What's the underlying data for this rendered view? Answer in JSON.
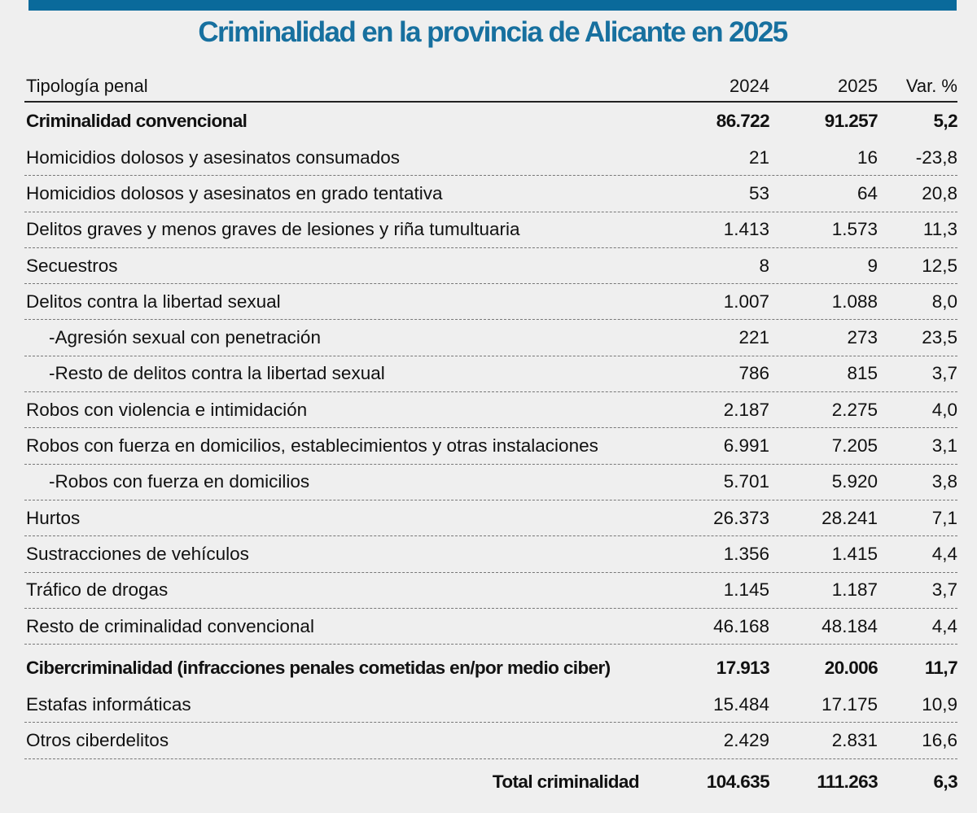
{
  "title": "Criminalidad en la provincia de Alicante en 2025",
  "colors": {
    "accent_bar": "#0a6a9b",
    "title": "#17709f",
    "background": "#efefef"
  },
  "chart_data": {
    "type": "table",
    "title": "Criminalidad en la provincia de Alicante en 2025",
    "columns": [
      "Tipología penal",
      "2024",
      "2025",
      "Var. %"
    ],
    "rows": [
      {
        "label": "Criminalidad convencional",
        "v2024": "86.722",
        "v2025": "91.257",
        "var": "5,2",
        "style": "bold"
      },
      {
        "label": "Homicidios dolosos y asesinatos consumados",
        "v2024": "21",
        "v2025": "16",
        "var": "-23,8"
      },
      {
        "label": "Homicidios dolosos y asesinatos en grado tentativa",
        "v2024": "53",
        "v2025": "64",
        "var": "20,8"
      },
      {
        "label": "Delitos graves y menos graves de lesiones y riña tumultuaria",
        "v2024": "1.413",
        "v2025": "1.573",
        "var": "11,3"
      },
      {
        "label": "Secuestros",
        "v2024": "8",
        "v2025": "9",
        "var": "12,5"
      },
      {
        "label": "Delitos contra la libertad sexual",
        "v2024": "1.007",
        "v2025": "1.088",
        "var": "8,0"
      },
      {
        "label": "-Agresión sexual con penetración",
        "v2024": "221",
        "v2025": "273",
        "var": "23,5",
        "style": "sub"
      },
      {
        "label": "-Resto de delitos contra la libertad sexual",
        "v2024": "786",
        "v2025": "815",
        "var": "3,7",
        "style": "sub"
      },
      {
        "label": "Robos con violencia e intimidación",
        "v2024": "2.187",
        "v2025": "2.275",
        "var": "4,0"
      },
      {
        "label": "Robos con fuerza en domicilios, establecimientos y otras instalaciones",
        "v2024": "6.991",
        "v2025": "7.205",
        "var": "3,1"
      },
      {
        "label": "-Robos con fuerza en domicilios",
        "v2024": "5.701",
        "v2025": "5.920",
        "var": "3,8",
        "style": "sub"
      },
      {
        "label": "Hurtos",
        "v2024": "26.373",
        "v2025": "28.241",
        "var": "7,1"
      },
      {
        "label": "Sustracciones de vehículos",
        "v2024": "1.356",
        "v2025": "1.415",
        "var": "4,4"
      },
      {
        "label": "Tráfico de drogas",
        "v2024": "1.145",
        "v2025": "1.187",
        "var": "3,7"
      },
      {
        "label": "Resto de criminalidad convencional",
        "v2024": "46.168",
        "v2025": "48.184",
        "var": "4,4"
      },
      {
        "label": "Cibercriminalidad (infracciones penales cometidas en/por medio ciber)",
        "v2024": "17.913",
        "v2025": "20.006",
        "var": "11,7",
        "style": "bold"
      },
      {
        "label": "Estafas informáticas",
        "v2024": "15.484",
        "v2025": "17.175",
        "var": "10,9"
      },
      {
        "label": "Otros ciberdelitos",
        "v2024": "2.429",
        "v2025": "2.831",
        "var": "16,6"
      },
      {
        "label": "Total criminalidad",
        "v2024": "104.635",
        "v2025": "111.263",
        "var": "6,3",
        "style": "total"
      }
    ]
  }
}
